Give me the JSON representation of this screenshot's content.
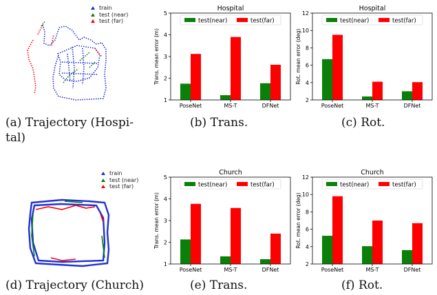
{
  "trajectories": [
    {
      "id": "hospital",
      "legend": [
        "train",
        "test (near)",
        "test (far)"
      ]
    },
    {
      "id": "church",
      "legend": [
        "train",
        "test (near)",
        "test (far)"
      ]
    }
  ],
  "captions": {
    "a": "(a)  Trajectory  (Hospi-",
    "a2": "tal)",
    "b": "(b)  Trans.",
    "c": "(c)  Rot.",
    "d": "(d)  Trajectory (Church)",
    "e": "(e)  Trans.",
    "f": "(f)  Rot."
  },
  "colors": {
    "near": "#0a800a",
    "far": "#ff0000",
    "train": "#1f2fd6"
  },
  "chart_data": [
    {
      "id": "hosp-trans",
      "type": "bar",
      "title": "Hospital",
      "ylabel": "Trans. mean error (m)",
      "categories": [
        "PoseNet",
        "MS-T",
        "DFNet"
      ],
      "ylim": [
        1,
        5
      ],
      "yticks": [
        1,
        2,
        3,
        4,
        5
      ],
      "series": [
        {
          "name": "test(near)",
          "values": [
            1.75,
            1.22,
            1.77
          ]
        },
        {
          "name": "test(far)",
          "values": [
            3.12,
            3.9,
            2.62
          ]
        }
      ],
      "legend": "top"
    },
    {
      "id": "hosp-rot",
      "type": "bar",
      "title": "Hospital",
      "ylabel": "Rot. mean error (deg)",
      "categories": [
        "PoseNet",
        "MS-T",
        "DFNet"
      ],
      "ylim": [
        2,
        12
      ],
      "yticks": [
        2,
        4,
        6,
        8,
        10,
        12
      ],
      "series": [
        {
          "name": "test(near)",
          "values": [
            6.7,
            2.4,
            3.0
          ]
        },
        {
          "name": "test(far)",
          "values": [
            9.5,
            4.1,
            4.05
          ]
        }
      ],
      "legend": "top"
    },
    {
      "id": "church-trans",
      "type": "bar",
      "title": "Church",
      "ylabel": "Trans. mean error (m)",
      "categories": [
        "PoseNet",
        "MS-T",
        "DFNet"
      ],
      "ylim": [
        1,
        5
      ],
      "yticks": [
        1,
        2,
        3,
        4,
        5
      ],
      "series": [
        {
          "name": "test(near)",
          "values": [
            2.13,
            1.35,
            1.22
          ]
        },
        {
          "name": "test(far)",
          "values": [
            3.77,
            3.58,
            2.4
          ]
        }
      ],
      "legend": "top"
    },
    {
      "id": "church-rot",
      "type": "bar",
      "title": "Church",
      "ylabel": "Rot. mean error (deg)",
      "categories": [
        "PoseNet",
        "MS-T",
        "DFNet"
      ],
      "ylim": [
        2,
        12
      ],
      "yticks": [
        2,
        4,
        6,
        8,
        10,
        12
      ],
      "series": [
        {
          "name": "test(near)",
          "values": [
            5.25,
            4.05,
            3.6
          ]
        },
        {
          "name": "test(far)",
          "values": [
            9.8,
            7.0,
            6.7
          ]
        }
      ],
      "legend": "top"
    }
  ]
}
